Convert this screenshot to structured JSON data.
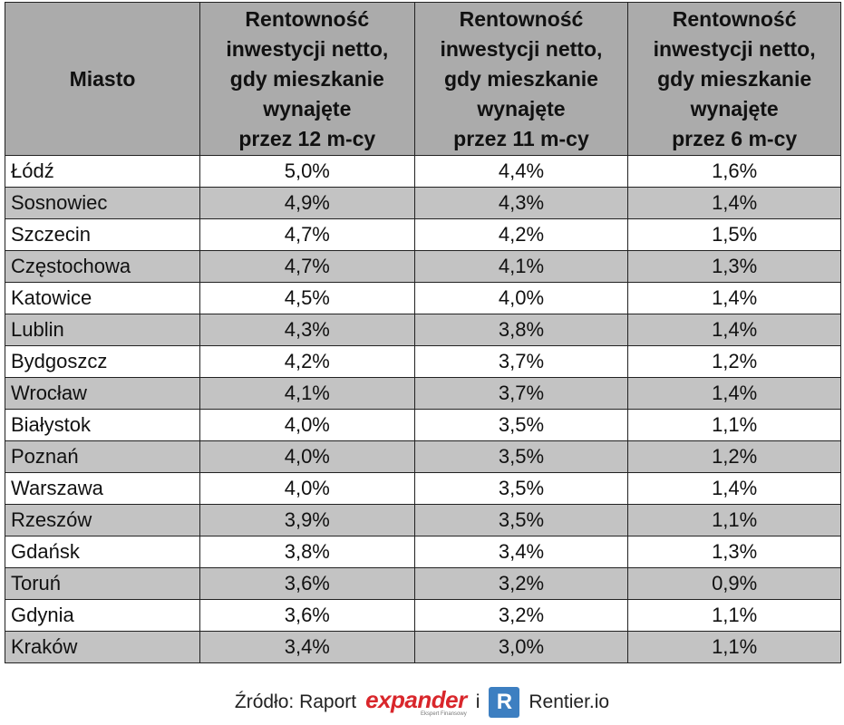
{
  "table": {
    "header": [
      "Miasto",
      "Rentowność\ninwestycji netto,\ngdy mieszkanie\nwynajęte\nprzez 12 m-cy",
      "Rentowność\ninwestycji netto,\ngdy mieszkanie\nwynajęte\nprzez 11 m-cy",
      "Rentowność\ninwestycji netto,\ngdy mieszkanie\nwynajęte\nprzez 6 m-cy"
    ],
    "rows": [
      [
        "Łódź",
        "5,0%",
        "4,4%",
        "1,6%"
      ],
      [
        "Sosnowiec",
        "4,9%",
        "4,3%",
        "1,4%"
      ],
      [
        "Szczecin",
        "4,7%",
        "4,2%",
        "1,5%"
      ],
      [
        "Częstochowa",
        "4,7%",
        "4,1%",
        "1,3%"
      ],
      [
        "Katowice",
        "4,5%",
        "4,0%",
        "1,4%"
      ],
      [
        "Lublin",
        "4,3%",
        "3,8%",
        "1,4%"
      ],
      [
        "Bydgoszcz",
        "4,2%",
        "3,7%",
        "1,2%"
      ],
      [
        "Wrocław",
        "4,1%",
        "3,7%",
        "1,4%"
      ],
      [
        "Białystok",
        "4,0%",
        "3,5%",
        "1,1%"
      ],
      [
        "Poznań",
        "4,0%",
        "3,5%",
        "1,2%"
      ],
      [
        "Warszawa",
        "4,0%",
        "3,5%",
        "1,4%"
      ],
      [
        "Rzeszów",
        "3,9%",
        "3,5%",
        "1,1%"
      ],
      [
        "Gdańsk",
        "3,8%",
        "3,4%",
        "1,3%"
      ],
      [
        "Toruń",
        "3,6%",
        "3,2%",
        "0,9%"
      ],
      [
        "Gdynia",
        "3,6%",
        "3,2%",
        "1,1%"
      ],
      [
        "Kraków",
        "3,4%",
        "3,0%",
        "1,1%"
      ]
    ]
  },
  "footer": {
    "source_label": "Źródło: Raport",
    "logo1": "expander",
    "logo1_tagline": "Ekspert Finansowy",
    "connector": "i",
    "logo2_icon": "R",
    "logo2": "Rentier.io"
  }
}
